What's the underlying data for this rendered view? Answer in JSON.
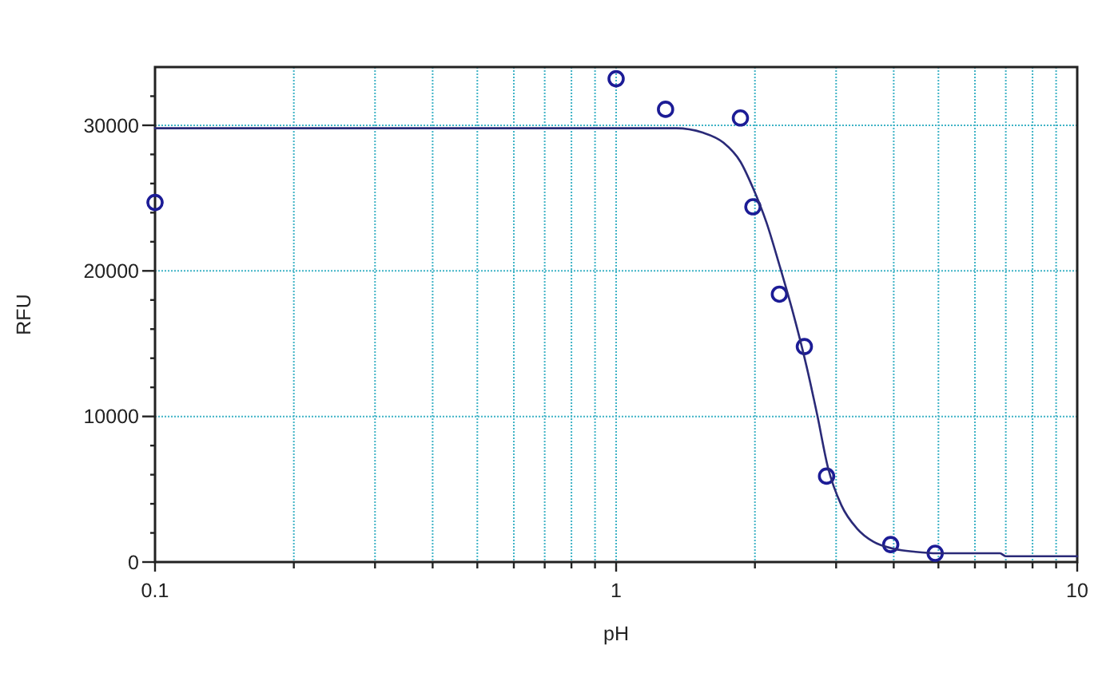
{
  "chart_data": {
    "type": "scatter",
    "xlabel": "pH",
    "ylabel": "RFU",
    "log": "x",
    "grid": true,
    "xlim": [
      0.1,
      10
    ],
    "ylim": [
      0,
      34000
    ],
    "xticks": [
      0.1,
      {
        "value": 0.2,
        "label": null
      },
      {
        "value": 0.3,
        "label": null
      },
      {
        "value": 0.4,
        "label": null
      },
      {
        "value": 0.5,
        "label": null
      },
      {
        "value": 0.6,
        "label": null
      },
      {
        "value": 0.7,
        "label": null
      },
      {
        "value": 0.8,
        "label": null
      },
      {
        "value": 0.9,
        "label": null
      },
      1,
      {
        "value": 2,
        "label": null
      },
      {
        "value": 3,
        "label": null
      },
      {
        "value": 4,
        "label": null
      },
      {
        "value": 5,
        "label": null
      },
      {
        "value": 6,
        "label": null
      },
      {
        "value": 7,
        "label": null
      },
      {
        "value": 8,
        "label": null
      },
      {
        "value": 9,
        "label": null
      },
      10
    ],
    "yticks": [
      0,
      {
        "value": 2000,
        "label": null
      },
      {
        "value": 4000,
        "label": null
      },
      {
        "value": 6000,
        "label": null
      },
      {
        "value": 8000,
        "label": null
      },
      10000,
      {
        "value": 12000,
        "label": null
      },
      {
        "value": 14000,
        "label": null
      },
      {
        "value": 16000,
        "label": null
      },
      {
        "value": 18000,
        "label": null
      },
      20000,
      {
        "value": 22000,
        "label": null
      },
      {
        "value": 24000,
        "label": null
      },
      {
        "value": 26000,
        "label": null
      },
      {
        "value": 28000,
        "label": null
      },
      30000,
      {
        "value": 32000,
        "label": null
      }
    ],
    "series": [
      {
        "color": "#1c1c96",
        "marker": "circle",
        "x": [
          0.1,
          1,
          1.28,
          1.86,
          1.98,
          2.26,
          2.56,
          2.86,
          3.94,
          4.92
        ],
        "values": [
          24700,
          33200,
          31100,
          30500,
          24400,
          18400,
          14800,
          5900,
          1200,
          600
        ]
      },
      {
        "type": "line",
        "color": "#2a2a78",
        "marker": "none",
        "line_style": "solid",
        "x": [
          0.1,
          1.35,
          1.54,
          1.71,
          1.86,
          1.98,
          2.12,
          2.26,
          2.42,
          2.59,
          2.73,
          2.88,
          3.08,
          3.33,
          3.61,
          4.01,
          4.46,
          4.96,
          6.8,
          7,
          10
        ],
        "values": [
          29800,
          29800,
          29500,
          28800,
          27500,
          25700,
          23300,
          20400,
          17100,
          13400,
          10100,
          6500,
          3900,
          2300,
          1400,
          900,
          700,
          600,
          600,
          400,
          400
        ]
      }
    ]
  }
}
